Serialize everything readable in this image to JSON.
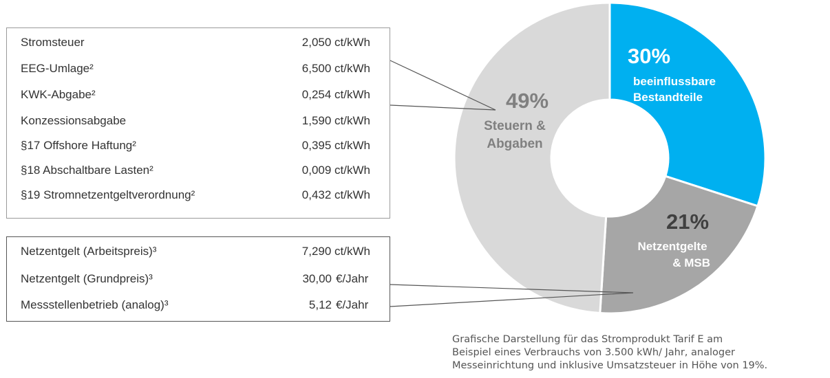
{
  "taxes_box": {
    "rows": [
      {
        "label": "Stromsteuer",
        "value": "2,050 ct/kWh"
      },
      {
        "label": "EEG-Umlage²",
        "value": "6,500 ct/kWh"
      },
      {
        "label": "KWK-Abgabe²",
        "value": "0,254 ct/kWh"
      },
      {
        "label": "Konzessionsabgabe",
        "value": "1,590 ct/kWh"
      },
      {
        "label": "§17 Offshore Haftung²",
        "value": "0,395 ct/kWh"
      },
      {
        "label": "§18 Abschaltbare Lasten²",
        "value": "0,009 ct/kWh"
      },
      {
        "label": "§19 Stromnetzentgeltverordnung²",
        "value": "0,432 ct/kWh"
      }
    ]
  },
  "grid_box": {
    "rows": [
      {
        "label": "Netzentgelt (Arbeitspreis)³",
        "value": "7,290 ct/kWh"
      },
      {
        "label": "Netzentgelt (Grundpreis)³",
        "amount": "30,00",
        "unit": "€/Jahr"
      },
      {
        "label": "Messstellenbetrieb (analog)³",
        "amount": "5,12",
        "unit": "€/Jahr"
      }
    ]
  },
  "chart_data": {
    "type": "pie",
    "donut": true,
    "start": "top, clockwise",
    "slices": [
      {
        "value": 30,
        "percent_label": "30%",
        "label_lines": [
          "beeinflussbare",
          "Bestandteile"
        ],
        "color": "#00b0f0",
        "text_color": "#ffffff"
      },
      {
        "value": 21,
        "percent_label": "21%",
        "label_lines": [
          "Netzentgelte",
          "& MSB"
        ],
        "color": "#a6a6a6",
        "text_color": "#404040"
      },
      {
        "value": 49,
        "percent_label": "49%",
        "label_lines": [
          "Steuern &",
          "Abgaben"
        ],
        "color": "#d9d9d9",
        "text_color": "#808080"
      }
    ]
  },
  "caption": {
    "lines": [
      "Grafische Darstellung für das Stromprodukt Tarif E am",
      "Beispiel eines Verbrauchs von 3.500 kWh/ Jahr, analoger",
      "Messeinrichtung und inklusive Umsatzsteuer in Höhe von 19%."
    ]
  }
}
